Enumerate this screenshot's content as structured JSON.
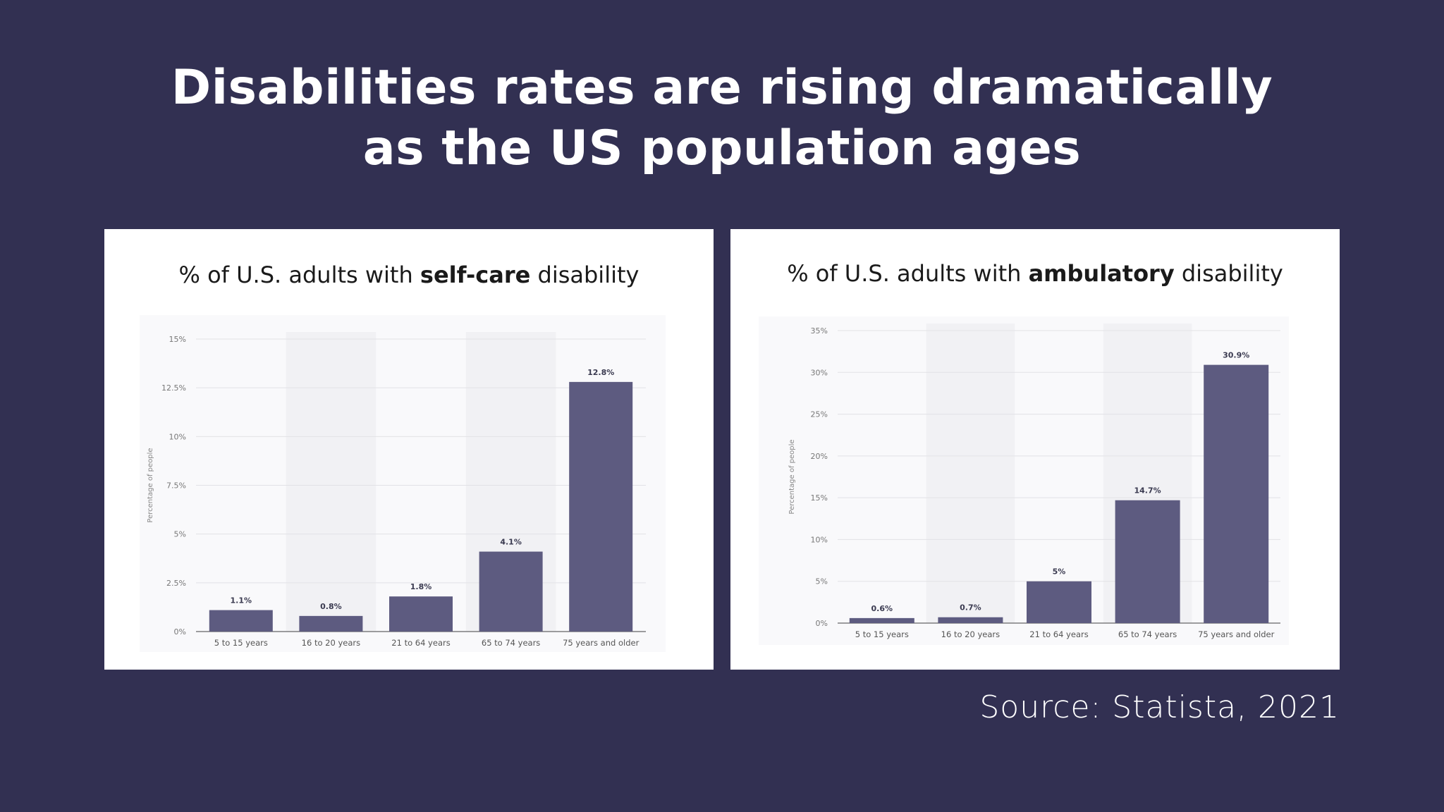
{
  "slide": {
    "headline_line1": "Disabilities rates are rising dramatically",
    "headline_line2": "as the US population ages",
    "source": "Source: Statista, 2021",
    "background_color": "#323052",
    "bar_color": "#5d5b80"
  },
  "charts": [
    {
      "title_prefix": "% of U.S. adults with ",
      "title_bold": "self-care",
      "title_suffix": " disability"
    },
    {
      "title_prefix": "% of U.S. adults with ",
      "title_bold": "ambulatory",
      "title_suffix": " disability"
    }
  ],
  "chart_data": [
    {
      "type": "bar",
      "ylabel": "Percentage of people",
      "categories": [
        "5 to 15 years",
        "16 to 20 years",
        "21 to 64 years",
        "65 to 74 years",
        "75 years and older"
      ],
      "values": [
        1.1,
        0.8,
        1.8,
        4.1,
        12.8
      ],
      "data_labels": [
        "1.1%",
        "0.8%",
        "1.8%",
        "4.1%",
        "12.8%"
      ],
      "ylim": [
        0,
        15
      ],
      "yticks": [
        0,
        2.5,
        5,
        7.5,
        10,
        12.5,
        15
      ],
      "ytick_labels": [
        "0%",
        "2.5%",
        "5%",
        "7.5%",
        "10%",
        "12.5%",
        "15%"
      ],
      "grid": true
    },
    {
      "type": "bar",
      "ylabel": "Percentage of people",
      "categories": [
        "5 to 15 years",
        "16 to 20 years",
        "21 to 64 years",
        "65 to 74 years",
        "75 years and older"
      ],
      "values": [
        0.6,
        0.7,
        5,
        14.7,
        30.9
      ],
      "data_labels": [
        "0.6%",
        "0.7%",
        "5%",
        "14.7%",
        "30.9%"
      ],
      "ylim": [
        0,
        35
      ],
      "yticks": [
        0,
        5,
        10,
        15,
        20,
        25,
        30,
        35
      ],
      "ytick_labels": [
        "0%",
        "5%",
        "10%",
        "15%",
        "20%",
        "25%",
        "30%",
        "35%"
      ],
      "grid": true
    }
  ]
}
